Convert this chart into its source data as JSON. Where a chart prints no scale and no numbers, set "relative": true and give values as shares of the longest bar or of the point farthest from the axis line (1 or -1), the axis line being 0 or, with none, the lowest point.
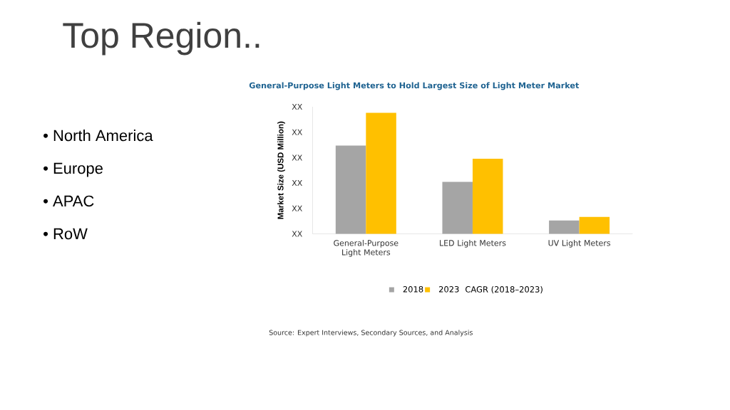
{
  "chart_data": {
    "type": "bar",
    "title": "General-Purpose Light Meters to Hold Largest Size of Light Meter Market",
    "ylabel": "Market Size (USD Million)",
    "categories": [
      "General-Purpose Light Meters",
      "LED Light Meters",
      "UV Light Meters"
    ],
    "series": [
      {
        "name": "2018",
        "color": "#a5a5a5",
        "values": [
          0.73,
          0.43,
          0.11
        ]
      },
      {
        "name": "2023",
        "color": "#ffc000",
        "values": [
          1,
          0.62,
          0.14
        ]
      }
    ],
    "relative": true,
    "legend": "bottom",
    "annotations": [
      "Top Region..",
      "• North America",
      "• Europe",
      "• APAC",
      "• RoW",
      "CAGR (2018–2023)",
      "Source: Expert Interviews, Secondary Sources, and Analysis",
      "XX",
      "XX",
      "XX",
      "XX",
      "XX",
      "XX"
    ]
  }
}
